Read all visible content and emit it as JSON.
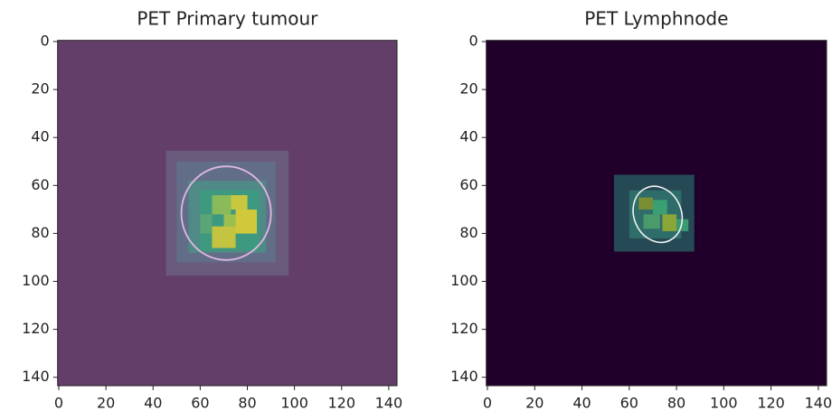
{
  "chart_data": [
    {
      "type": "image",
      "title": "PET Primary tumour",
      "xlim": [
        -0.5,
        143.5
      ],
      "ylim": [
        143.5,
        -0.5
      ],
      "xticks": [
        0,
        20,
        40,
        60,
        80,
        100,
        120,
        140
      ],
      "yticks": [
        0,
        20,
        40,
        60,
        80,
        100,
        120,
        140
      ]
    },
    {
      "type": "image",
      "title": "PET Lymphnode",
      "xlim": [
        -0.5,
        143.5
      ],
      "ylim": [
        143.5,
        -0.5
      ],
      "xticks": [
        0,
        20,
        40,
        60,
        80,
        100,
        120,
        140
      ],
      "yticks": [
        0,
        20,
        40,
        60,
        80,
        100,
        120,
        140
      ]
    }
  ]
}
